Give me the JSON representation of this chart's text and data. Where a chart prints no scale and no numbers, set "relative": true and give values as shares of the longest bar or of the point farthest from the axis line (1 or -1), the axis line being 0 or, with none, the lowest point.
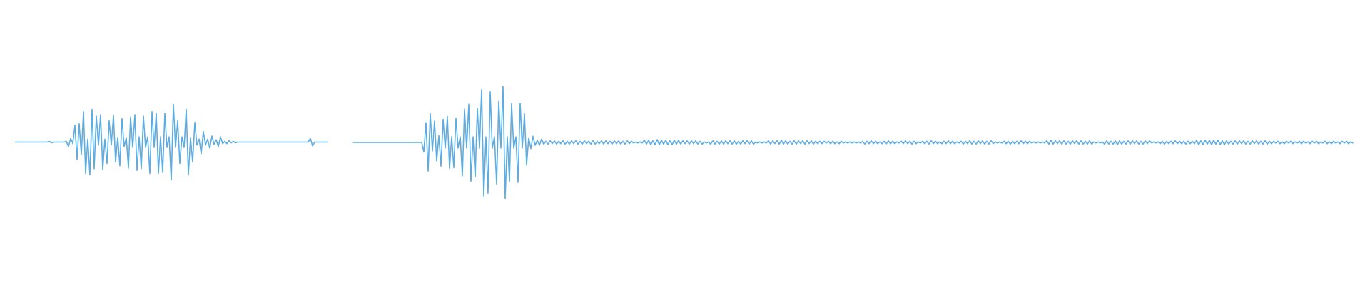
{
  "chart_data": [
    {
      "type": "line",
      "relative": true,
      "marker": "none",
      "categories": [
        null,
        null,
        null,
        null,
        null,
        null,
        null,
        null,
        null,
        null,
        null,
        null,
        null,
        null,
        null,
        null,
        null,
        null,
        null,
        null,
        null,
        null,
        null,
        null,
        null,
        null,
        null,
        null,
        null,
        null,
        null,
        null,
        null,
        null,
        null,
        null,
        null,
        null,
        null,
        null,
        null,
        null,
        null,
        null,
        null,
        null,
        null,
        null,
        null,
        null,
        null,
        null,
        null,
        null,
        null,
        null,
        null,
        null,
        null,
        null,
        null,
        null,
        null,
        null,
        null,
        null,
        null,
        null,
        null,
        null,
        null,
        null,
        null,
        null,
        null,
        null,
        null,
        null,
        null,
        null,
        null,
        null,
        null,
        null,
        null,
        null,
        null,
        null,
        null,
        null,
        null,
        null,
        null,
        null,
        null,
        null,
        null,
        null,
        null,
        null,
        null,
        null,
        null,
        null,
        null,
        null,
        null,
        null,
        null,
        null,
        null,
        null,
        null,
        null,
        null,
        null,
        null,
        null,
        null,
        null,
        null,
        null,
        null,
        null,
        null,
        null,
        null,
        null,
        null,
        null,
        null,
        null,
        null,
        null,
        null,
        null,
        null,
        null,
        null,
        null,
        null,
        null,
        null,
        null,
        null,
        null,
        null
      ],
      "series": [
        {
          "color": "#5dade2",
          "values": [
            0.5,
            0.5,
            0.5,
            0.5,
            0.5,
            0.5,
            0.5,
            0.5,
            0.5,
            0.5,
            0.5,
            0.5,
            0.5,
            0.5,
            0.5,
            0.5,
            0.51,
            0.49,
            0.5,
            0.5,
            0.5,
            0.5,
            0.5,
            0.5,
            0.51,
            0.44,
            0.55,
            0.48,
            0.72,
            0.27,
            0.74,
            0.34,
            0.9,
            0.09,
            0.54,
            0.07,
            0.93,
            0.15,
            0.84,
            0.46,
            0.86,
            0.14,
            0.54,
            0.22,
            0.78,
            0.46,
            0.85,
            0.24,
            0.56,
            0.19,
            0.81,
            0.44,
            0.56,
            0.16,
            0.83,
            0.43,
            0.86,
            0.13,
            0.57,
            0.15,
            0.84,
            0.43,
            0.57,
            0.09,
            0.9,
            0.43,
            0.88,
            0.09,
            0.57,
            0.1,
            0.88,
            0.43,
            0.57,
            0,
            1,
            0.43,
            0.78,
            0.22,
            0.57,
            0.43,
            0.93,
            0.07,
            0.56,
            0.24,
            0.76,
            0.46,
            0.54,
            0.35,
            0.64,
            0.46,
            0.54,
            0.42,
            0.58,
            0.47,
            0.53,
            0.44,
            0.57,
            0.48,
            0.51,
            0.48,
            0.52,
            0.49,
            0.51,
            0.49,
            0.5,
            0.5,
            0.5,
            0.5,
            0.5,
            0.5,
            0.5,
            0.5,
            0.5,
            0.5,
            0.5,
            0.5,
            0.5,
            0.5,
            0.5,
            0.5,
            0.5,
            0.5,
            0.5,
            0.5,
            0.5,
            0.5,
            0.5,
            0.5,
            0.5,
            0.5,
            0.5,
            0.5,
            0.5,
            0.5,
            0.5,
            0.5,
            0.5,
            0.5,
            0.55,
            0.45,
            0.5,
            0.5,
            0.5,
            0.5,
            0.5,
            0.5,
            0.5
          ]
        }
      ]
    },
    {
      "type": "line",
      "relative": true,
      "marker": "none",
      "categories": [
        null,
        null,
        null,
        null,
        null,
        null,
        null,
        null,
        null,
        null,
        null,
        null,
        null,
        null,
        null,
        null,
        null,
        null,
        null,
        null,
        null,
        null,
        null,
        null,
        null,
        null,
        null,
        null,
        null,
        null,
        null,
        null,
        null,
        null,
        null,
        null,
        null,
        null,
        null,
        null,
        null,
        null,
        null,
        null,
        null,
        null,
        null,
        null,
        null,
        null,
        null,
        null,
        null,
        null,
        null,
        null,
        null,
        null,
        null,
        null,
        null,
        null,
        null,
        null,
        null,
        null,
        null,
        null,
        null,
        null,
        null,
        null,
        null,
        null,
        null,
        null,
        null,
        null,
        null,
        null,
        null,
        null,
        null,
        null,
        null,
        null,
        null,
        null,
        null,
        null,
        null,
        null,
        null,
        null,
        null,
        null,
        null,
        null,
        null,
        null,
        null,
        null,
        null,
        null,
        null,
        null,
        null,
        null,
        null,
        null,
        null,
        null,
        null,
        null,
        null,
        null,
        null,
        null,
        null,
        null,
        null,
        null,
        null,
        null,
        null,
        null,
        null,
        null,
        null,
        null,
        null,
        null,
        null,
        null,
        null,
        null,
        null,
        null,
        null,
        null,
        null,
        null,
        null,
        null,
        null,
        null,
        null,
        null,
        null,
        null,
        null,
        null,
        null,
        null,
        null,
        null,
        null,
        null,
        null,
        null,
        null,
        null,
        null,
        null,
        null,
        null,
        null,
        null,
        null,
        null,
        null,
        null,
        null,
        null,
        null,
        null,
        null,
        null,
        null,
        null,
        null,
        null,
        null,
        null,
        null,
        null,
        null,
        null,
        null,
        null,
        null,
        null,
        null,
        null,
        null,
        null,
        null,
        null,
        null,
        null,
        null,
        null,
        null,
        null,
        null,
        null,
        null,
        null,
        null,
        null,
        null,
        null,
        null,
        null,
        null,
        null,
        null,
        null,
        null,
        null,
        null,
        null,
        null,
        null,
        null,
        null,
        null,
        null,
        null,
        null,
        null,
        null,
        null,
        null,
        null,
        null,
        null,
        null,
        null,
        null,
        null,
        null,
        null,
        null,
        null,
        null,
        null,
        null,
        null,
        null,
        null,
        null,
        null,
        null,
        null,
        null,
        null,
        null,
        null,
        null,
        null,
        null,
        null,
        null,
        null,
        null,
        null,
        null,
        null,
        null,
        null,
        null,
        null,
        null,
        null,
        null,
        null,
        null,
        null,
        null,
        null,
        null,
        null,
        null,
        null,
        null,
        null,
        null,
        null,
        null,
        null,
        null,
        null,
        null,
        null,
        null,
        null,
        null,
        null,
        null,
        null,
        null,
        null,
        null,
        null,
        null,
        null,
        null,
        null,
        null,
        null,
        null,
        null,
        null,
        null,
        null,
        null,
        null,
        null,
        null,
        null,
        null,
        null,
        null,
        null,
        null,
        null,
        null,
        null,
        null,
        null,
        null,
        null,
        null,
        null,
        null,
        null,
        null,
        null,
        null,
        null,
        null,
        null,
        null,
        null,
        null,
        null,
        null,
        null,
        null,
        null,
        null,
        null,
        null,
        null,
        null,
        null,
        null,
        null,
        null,
        null,
        null,
        null,
        null,
        null,
        null,
        null,
        null,
        null,
        null,
        null,
        null,
        null,
        null,
        null,
        null,
        null,
        null,
        null,
        null,
        null,
        null,
        null,
        null,
        null,
        null,
        null,
        null,
        null,
        null,
        null,
        null,
        null,
        null,
        null,
        null,
        null,
        null,
        null,
        null,
        null,
        null,
        null,
        null,
        null,
        null,
        null,
        null,
        null,
        null,
        null,
        null,
        null,
        null,
        null,
        null,
        null,
        null,
        null,
        null,
        null,
        null,
        null,
        null,
        null,
        null,
        null,
        null,
        null,
        null,
        null,
        null,
        null,
        null,
        null,
        null,
        null,
        null,
        null,
        null,
        null,
        null,
        null,
        null,
        null,
        null,
        null,
        null,
        null,
        null,
        null,
        null,
        null,
        null,
        null,
        null,
        null,
        null,
        null,
        null,
        null,
        null,
        null,
        null,
        null,
        null,
        null,
        null
      ],
      "series": [
        {
          "color": "#5dade2",
          "values": [
            0.5,
            0.5,
            0.5,
            0.5,
            0.5,
            0.5,
            0.5,
            0.5,
            0.5,
            0.5,
            0.5,
            0.5,
            0.5,
            0.5,
            0.5,
            0.5,
            0.5,
            0.5,
            0.5,
            0.5,
            0.5,
            0.5,
            0.5,
            0.5,
            0.5,
            0.5,
            0.5,
            0.5,
            0.5,
            0.5,
            0.5,
            0.5,
            0.5,
            0.415,
            0.675,
            0.245,
            0.755,
            0.425,
            0.69,
            0.335,
            0.56,
            0.29,
            0.705,
            0.45,
            0.73,
            0.27,
            0.55,
            0.275,
            0.715,
            0.45,
            0.55,
            0.205,
            0.795,
            0.45,
            0.84,
            0.155,
            0.55,
            0.195,
            0.805,
            0.45,
            0.97,
            0.025,
            0.55,
            0.05,
            0.95,
            0.45,
            0.55,
            0.13,
            0.865,
            0.45,
            1,
            0,
            0.55,
            0.155,
            0.845,
            0.45,
            0.55,
            0.145,
            0.85,
            0.45,
            0.755,
            0.3,
            0.54,
            0.445,
            0.555,
            0.475,
            0.52,
            0.475,
            0.53,
            0.485,
            0.51,
            0.485,
            0.515,
            0.49,
            0.515,
            0.485,
            0.51,
            0.49,
            0.515,
            0.485,
            0.51,
            0.485,
            0.515,
            0.49,
            0.515,
            0.485,
            0.51,
            0.485,
            0.515,
            0.49,
            0.51,
            0.485,
            0.515,
            0.485,
            0.51,
            0.49,
            0.515,
            0.485,
            0.515,
            0.49,
            0.51,
            0.485,
            0.515,
            0.49,
            0.515,
            0.485,
            0.51,
            0.485,
            0.515,
            0.49,
            0.51,
            0.495,
            0.505,
            0.495,
            0.505,
            0.495,
            0.52,
            0.485,
            0.52,
            0.48,
            0.515,
            0.48,
            0.525,
            0.48,
            0.52,
            0.485,
            0.52,
            0.48,
            0.515,
            0.48,
            0.52,
            0.485,
            0.52,
            0.485,
            0.515,
            0.49,
            0.515,
            0.485,
            0.515,
            0.49,
            0.515,
            0.485,
            0.51,
            0.485,
            0.505,
            0.495,
            0.505,
            0.485,
            0.515,
            0.485,
            0.51,
            0.485,
            0.515,
            0.485,
            0.515,
            0.49,
            0.515,
            0.485,
            0.515,
            0.485,
            0.51,
            0.485,
            0.515,
            0.49,
            0.515,
            0.485,
            0.515,
            0.485,
            0.505,
            0.495,
            0.505,
            0.495,
            0.505,
            0.495,
            0.515,
            0.485,
            0.515,
            0.49,
            0.515,
            0.485,
            0.52,
            0.485,
            0.515,
            0.485,
            0.51,
            0.485,
            0.515,
            0.485,
            0.515,
            0.49,
            0.515,
            0.485,
            0.515,
            0.49,
            0.515,
            0.485,
            0.51,
            0.49,
            0.51,
            0.49,
            0.51,
            0.495,
            0.51,
            0.49,
            0.51,
            0.49,
            0.505,
            0.49,
            0.51,
            0.495,
            0.505,
            0.495,
            0.505,
            0.495,
            0.505,
            0.495,
            0.505,
            0.495,
            0.51,
            0.485,
            0.51,
            0.49,
            0.515,
            0.49,
            0.51,
            0.49,
            0.505,
            0.49,
            0.51,
            0.485,
            0.515,
            0.49,
            0.51,
            0.49,
            0.505,
            0.495,
            0.51,
            0.49,
            0.515,
            0.49,
            0.51,
            0.485,
            0.51,
            0.49,
            0.505,
            0.495,
            0.51,
            0.49,
            0.51,
            0.485,
            0.515,
            0.49,
            0.51,
            0.49,
            0.505,
            0.49,
            0.51,
            0.49,
            0.515,
            0.49,
            0.51,
            0.49,
            0.505,
            0.495,
            0.51,
            0.485,
            0.51,
            0.49,
            0.515,
            0.485,
            0.51,
            0.485,
            0.515,
            0.49,
            0.515,
            0.485,
            0.51,
            0.485,
            0.515,
            0.49,
            0.505,
            0.495,
            0.505,
            0.495,
            0.51,
            0.49,
            0.51,
            0.485,
            0.51,
            0.49,
            0.51,
            0.49,
            0.515,
            0.49,
            0.51,
            0.49,
            0.51,
            0.495,
            0.505,
            0.495,
            0.505,
            0.495,
            0.505,
            0.495,
            0.515,
            0.485,
            0.52,
            0.485,
            0.515,
            0.49,
            0.515,
            0.485,
            0.515,
            0.485,
            0.51,
            0.485,
            0.515,
            0.49,
            0.515,
            0.485,
            0.515,
            0.485,
            0.51,
            0.485,
            0.515,
            0.485,
            0.505,
            0.495,
            0.505,
            0.495,
            0.505,
            0.485,
            0.515,
            0.485,
            0.51,
            0.485,
            0.515,
            0.48,
            0.515,
            0.485,
            0.51,
            0.485,
            0.515,
            0.485,
            0.515,
            0.49,
            0.515,
            0.485,
            0.51,
            0.485,
            0.515,
            0.49,
            0.515,
            0.495,
            0.505,
            0.495,
            0.505,
            0.49,
            0.51,
            0.485,
            0.51,
            0.49,
            0.51,
            0.49,
            0.515,
            0.49,
            0.51,
            0.49,
            0.51,
            0.485,
            0.51,
            0.49,
            0.51,
            0.49,
            0.52,
            0.48,
            0.515,
            0.48,
            0.52,
            0.485,
            0.52,
            0.48,
            0.52,
            0.485,
            0.52,
            0.48,
            0.515,
            0.48,
            0.515,
            0.485,
            0.51,
            0.485,
            0.515,
            0.485,
            0.515,
            0.49,
            0.515,
            0.485,
            0.51,
            0.485,
            0.515,
            0.49,
            0.515,
            0.485,
            0.51,
            0.485,
            0.515,
            0.485,
            0.51,
            0.49,
            0.51,
            0.495,
            0.51,
            0.49,
            0.505,
            0.49,
            0.51,
            0.495,
            0.51,
            0.49,
            0.505,
            0.495,
            0.51,
            0.49,
            0.51,
            0.495,
            0.505,
            0.49,
            0.51,
            0.495,
            0.51,
            0.49,
            0.505,
            0.495,
            0.51,
            0.49,
            0.505,
            0.49,
            0.51,
            0.495,
            0.505,
            0.49,
            0.51,
            0.495,
            0.51,
            0.49,
            0.505,
            0.495
          ]
        }
      ]
    }
  ]
}
